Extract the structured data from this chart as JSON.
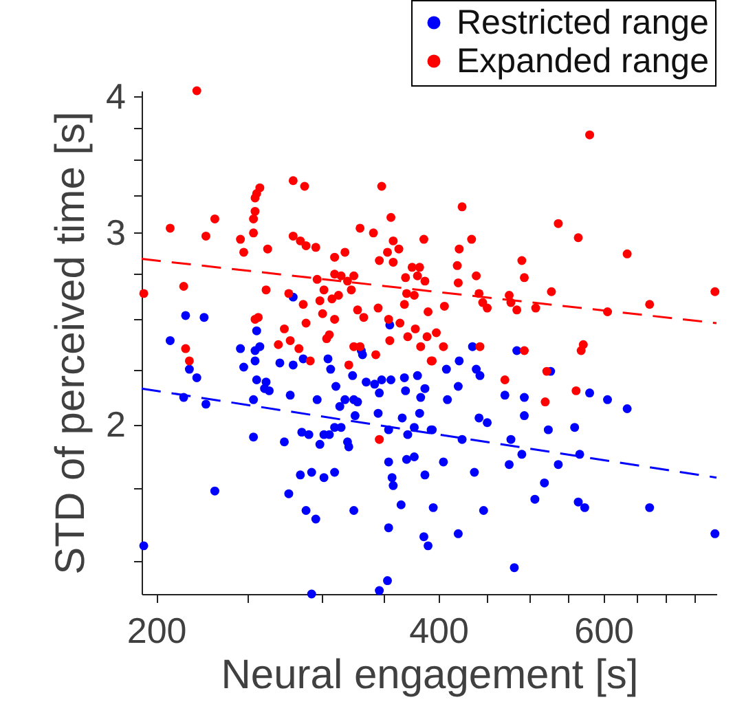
{
  "chart_data": {
    "type": "scatter",
    "xlabel": "Neural engagement [s]",
    "ylabel": "STD of perceived time [s]",
    "log": "xy",
    "xlim": [
      193,
      792
    ],
    "ylim": [
      1.4,
      4.05
    ],
    "xticks": [
      200,
      {
        "value": 250,
        "label": null
      },
      {
        "value": 300,
        "label": null
      },
      {
        "value": 350,
        "label": null
      },
      400,
      {
        "value": 450,
        "label": null
      },
      {
        "value": 500,
        "label": null
      },
      {
        "value": 550,
        "label": null
      },
      600,
      {
        "value": 650,
        "label": null
      },
      {
        "value": 700,
        "label": null
      },
      {
        "value": 750,
        "label": null
      }
    ],
    "yticks": [
      {
        "value": 1.5,
        "label": null
      },
      {
        "value": 1.75,
        "label": null
      },
      2,
      {
        "value": 2.25,
        "label": null
      },
      {
        "value": 2.5,
        "label": null
      },
      {
        "value": 2.75,
        "label": null
      },
      3,
      {
        "value": 3.25,
        "label": null
      },
      {
        "value": 3.5,
        "label": null
      },
      {
        "value": 3.75,
        "label": null
      },
      4
    ],
    "grid": false,
    "legend": "top right",
    "series": [
      {
        "name": "Restricted range",
        "color": "#0000ff",
        "marker": "circle",
        "x": [
          280,
          215,
          225,
          207,
          256,
          355,
          217,
          221,
          214,
          226,
          231,
          194,
          246,
          248,
          255,
          255,
          258,
          256,
          262,
          261,
          264,
          254,
          254,
          271,
          280,
          287,
          278,
          274,
          286,
          291,
          285,
          293,
          277,
          289,
          296,
          293,
          297,
          305,
          307,
          311,
          299,
          302,
          306,
          310,
          315,
          302,
          310,
          314,
          318,
          325,
          328,
          326,
          320,
          321,
          325,
          324,
          331,
          332,
          335,
          342,
          348,
          346,
          345,
          354,
          354,
          357,
          358,
          365,
          354,
          353,
          346,
          356,
          368,
          380,
          369,
          387,
          383,
          366,
          382,
          377,
          371,
          393,
          377,
          370,
          387,
          395,
          386,
          390,
          435,
          485,
          421,
          408,
          439,
          443,
          420,
          409,
          471,
          494,
          494,
          527,
          580,
          606,
          636,
          442,
          451,
          394,
          424,
          478,
          491,
          524,
          559,
          566,
          537,
          519,
          476,
          437,
          405,
          447,
          507,
          564,
          573,
          672,
          789,
          420,
          482
        ],
        "values": [
          2.62,
          2.52,
          2.51,
          2.39,
          2.44,
          2.47,
          2.25,
          2.21,
          2.12,
          2.09,
          1.74,
          1.55,
          2.35,
          2.26,
          2.29,
          2.34,
          2.36,
          2.2,
          2.19,
          2.16,
          2.15,
          2.11,
          1.95,
          2.28,
          2.27,
          2.3,
          2.13,
          1.93,
          1.97,
          1.96,
          1.8,
          1.81,
          1.73,
          1.67,
          1.64,
          1.4,
          2.11,
          2.3,
          2.25,
          2.17,
          1.92,
          1.96,
          1.96,
          1.99,
          1.99,
          1.79,
          1.81,
          2.08,
          2.11,
          2.11,
          2.1,
          2.04,
          1.93,
          1.91,
          1.67,
          2.22,
          2.34,
          2.32,
          2.19,
          2.18,
          2.2,
          2.14,
          2.05,
          1.98,
          1.85,
          1.79,
          1.76,
          1.69,
          1.61,
          1.44,
          1.41,
          2.2,
          2.21,
          2.22,
          2.15,
          2.16,
          2.12,
          2.03,
          2.05,
          1.99,
          1.96,
          1.98,
          1.87,
          1.86,
          1.8,
          1.68,
          1.58,
          1.55,
          2.36,
          2.34,
          2.29,
          2.25,
          2.25,
          2.22,
          2.17,
          2.11,
          2.13,
          2.12,
          2.04,
          2.24,
          2.14,
          2.11,
          2.07,
          2.03,
          2.01,
          1.98,
          1.94,
          1.94,
          1.88,
          1.98,
          1.99,
          1.88,
          1.84,
          1.77,
          1.84,
          1.81,
          1.85,
          1.67,
          1.71,
          1.7,
          1.68,
          1.68,
          1.59,
          1.59,
          1.48
        ]
      },
      {
        "name": "Expanded range",
        "color": "#ff0000",
        "marker": "circle",
        "x": [
          221,
          207,
          194,
          214,
          226,
          231,
          246,
          248,
          254,
          254,
          255,
          255,
          256,
          258,
          263,
          262,
          255,
          257,
          280,
          288,
          280,
          285,
          289,
          296,
          277,
          287,
          274,
          289,
          278,
          297,
          302,
          299,
          308,
          310,
          318,
          310,
          315,
          325,
          320,
          323,
          313,
          301,
          310,
          306,
          304,
          328,
          333,
          330,
          341,
          348,
          356,
          358,
          363,
          346,
          353,
          358,
          345,
          354,
          369,
          375,
          382,
          380,
          386,
          387,
          370,
          377,
          368,
          390,
          364,
          378,
          371,
          389,
          355,
          580,
          424,
          537,
          564,
          636,
          789,
          434,
          421,
          419,
          420,
          439,
          491,
          494,
          528,
          442,
          446,
          451,
          476,
          478,
          485,
          508,
          606,
          672,
          406,
          398,
          215,
          217,
          270,
          284,
          292,
          325,
          330,
          321,
          343,
          383,
          393,
          346,
          405,
          443,
          494,
          571,
          568,
          394,
          471,
          522,
          561,
          520
        ],
        "values": [
          4.05,
          3.03,
          2.64,
          2.68,
          2.98,
          3.09,
          2.96,
          2.88,
          3.0,
          3.09,
          3.14,
          3.23,
          3.26,
          3.3,
          2.9,
          2.66,
          2.5,
          2.51,
          3.35,
          3.31,
          2.98,
          2.95,
          2.92,
          2.91,
          2.64,
          2.58,
          2.45,
          2.48,
          2.39,
          2.72,
          2.66,
          2.6,
          2.61,
          2.85,
          2.88,
          2.75,
          2.74,
          2.74,
          2.71,
          2.66,
          2.63,
          2.53,
          2.5,
          2.42,
          2.4,
          2.55,
          2.51,
          3.03,
          3.0,
          3.31,
          3.1,
          2.95,
          2.9,
          2.83,
          2.88,
          2.82,
          2.56,
          2.5,
          2.73,
          2.79,
          2.79,
          2.74,
          2.96,
          2.71,
          2.64,
          2.63,
          2.58,
          2.54,
          2.48,
          2.45,
          2.41,
          2.41,
          2.39,
          3.69,
          3.17,
          3.06,
          2.97,
          2.87,
          2.65,
          2.96,
          2.9,
          2.8,
          2.7,
          2.74,
          2.83,
          2.73,
          2.65,
          2.64,
          2.59,
          2.56,
          2.63,
          2.59,
          2.55,
          2.56,
          2.54,
          2.58,
          2.57,
          2.43,
          2.35,
          2.29,
          2.37,
          2.35,
          2.29,
          2.36,
          2.36,
          2.27,
          2.32,
          2.36,
          2.29,
          1.94,
          2.36,
          2.36,
          2.34,
          2.37,
          2.34,
          2.29,
          2.2,
          2.24,
          2.15,
          2.1
        ]
      },
      {
        "type": "line",
        "color": "#0000ff",
        "line_style": "dashed",
        "marker": "none",
        "x": [
          193,
          792
        ],
        "values": [
          2.16,
          1.79
        ]
      },
      {
        "type": "line",
        "color": "#ff0000",
        "line_style": "dashed",
        "marker": "none",
        "x": [
          193,
          792
        ],
        "values": [
          2.84,
          2.48
        ]
      }
    ]
  }
}
